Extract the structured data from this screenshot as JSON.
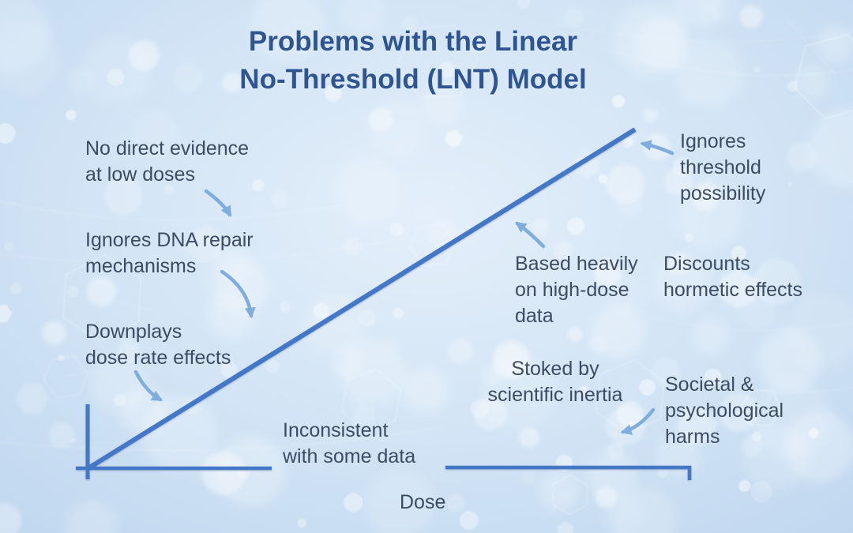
{
  "slide": {
    "title_line1": "Problems with the Linear",
    "title_line2": "No-Threshold (LNT) Model"
  },
  "diagram": {
    "x_axis_label": "Dose",
    "annotations": {
      "no_direct_evidence": {
        "l1": "No direct evidence",
        "l2": "at low doses"
      },
      "dna_repair": {
        "l1": "Ignores DNA repair",
        "l2": "mechanisms"
      },
      "dose_rate": {
        "l1": "Downplays",
        "l2": "dose rate effects"
      },
      "inconsistent": {
        "l1": "Inconsistent",
        "l2": "with some data"
      },
      "threshold": {
        "l1": "Ignores",
        "l2": "threshold",
        "l3": "possibility"
      },
      "high_dose": {
        "l1": "Based heavily",
        "l2": "on high-dose",
        "l3": "data"
      },
      "hormetic": {
        "l1": "Discounts",
        "l2": "hormetic effects"
      },
      "inertia": {
        "l1": "Stoked by",
        "l2": "scientific inertia"
      },
      "societal": {
        "l1": "Societal &",
        "l2": "psychological",
        "l3": "harms"
      }
    }
  },
  "colors": {
    "title": "#2e5492",
    "body_text": "#3e4b64",
    "line": "#4477c5",
    "arrow": "#7fadde",
    "bg_center": "#e4effa",
    "bg_edge": "#bcd4ee"
  }
}
